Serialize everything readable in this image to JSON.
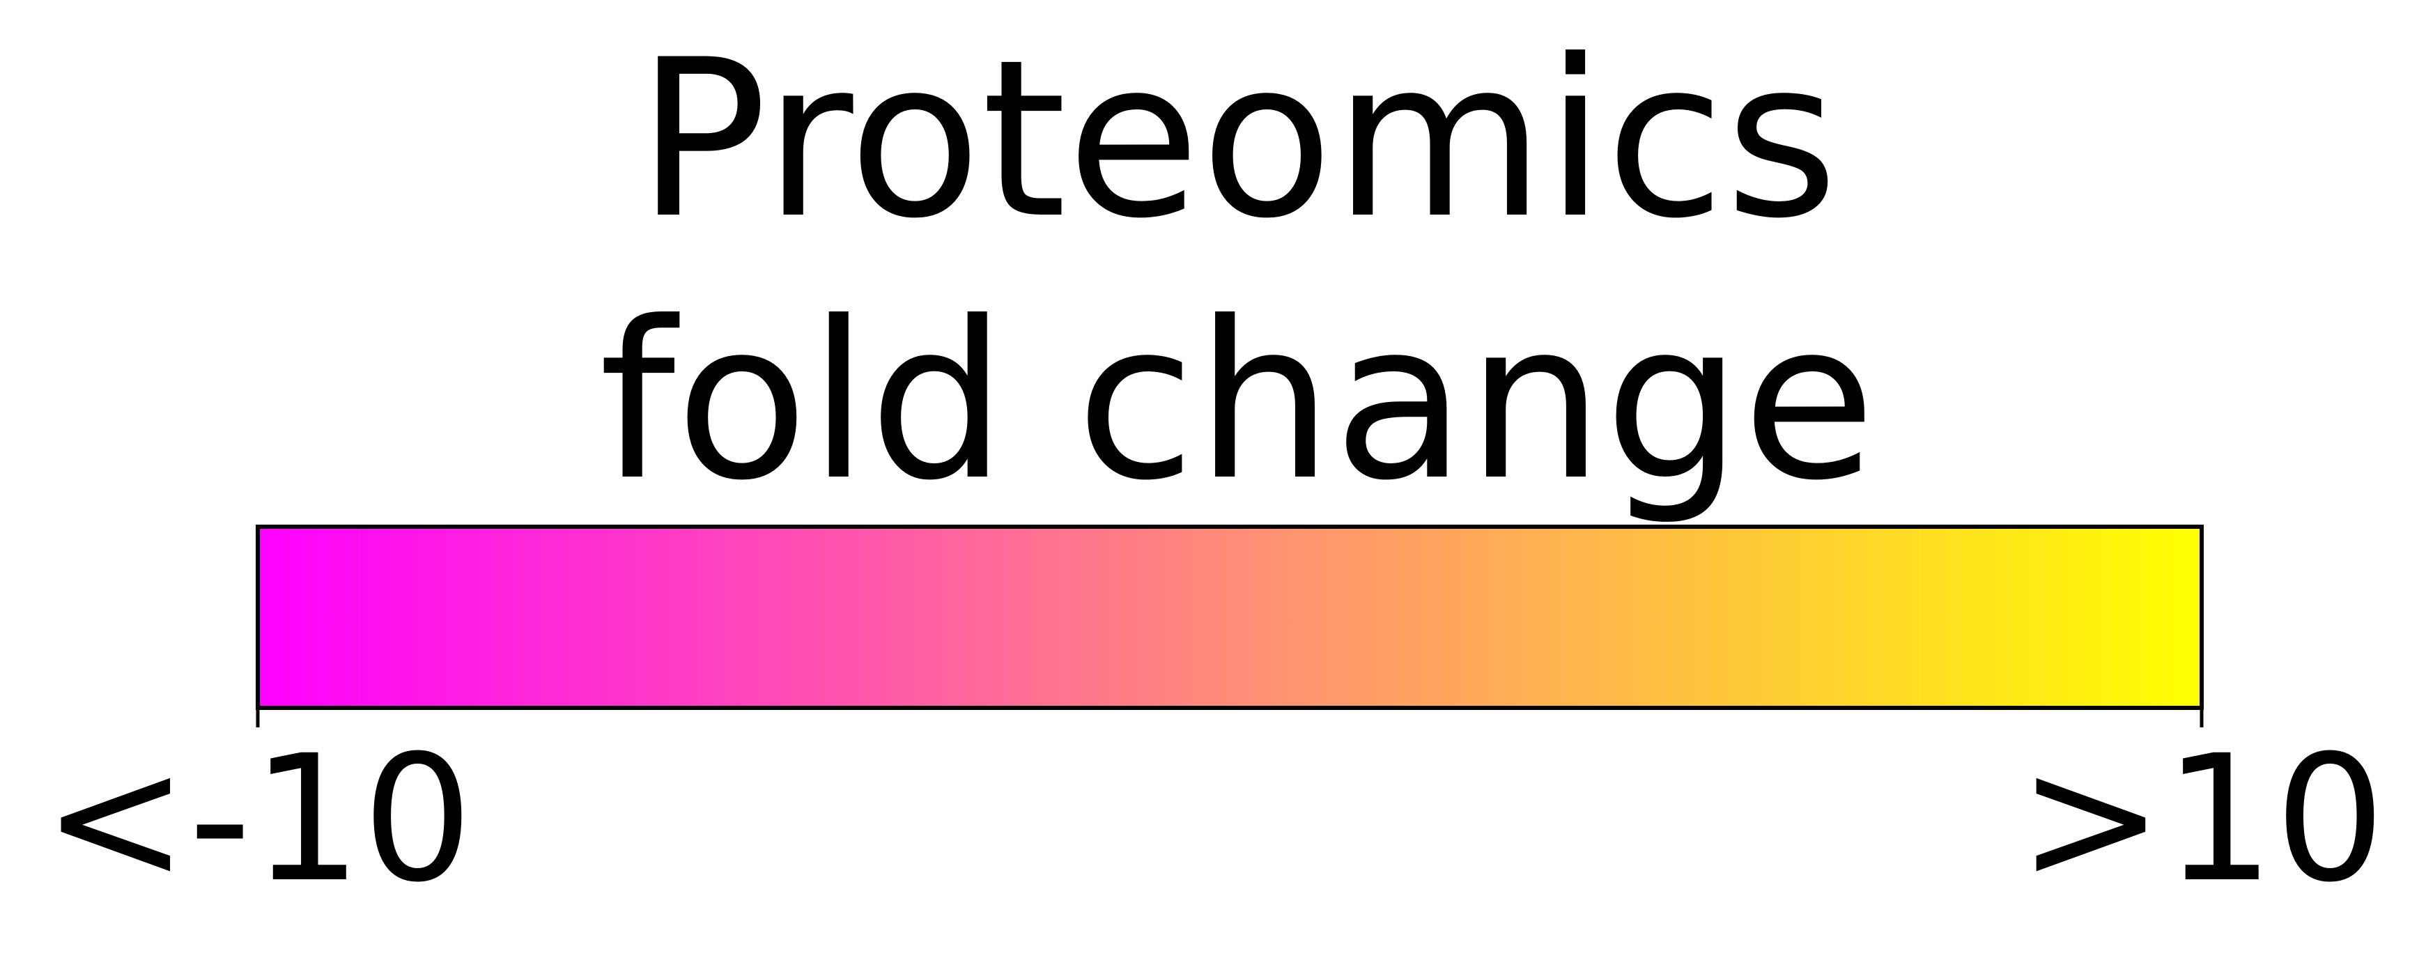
{
  "chart_data": {
    "type": "heatmap",
    "title_lines": [
      "Proteomics",
      "fold change"
    ],
    "colorbar": {
      "orientation": "horizontal",
      "min_label": "<-10",
      "max_label": ">10",
      "range": [
        -10,
        10
      ],
      "colors": {
        "min": "#ff00ff",
        "mid": "#ff8c78",
        "max": "#ffff00"
      }
    }
  }
}
